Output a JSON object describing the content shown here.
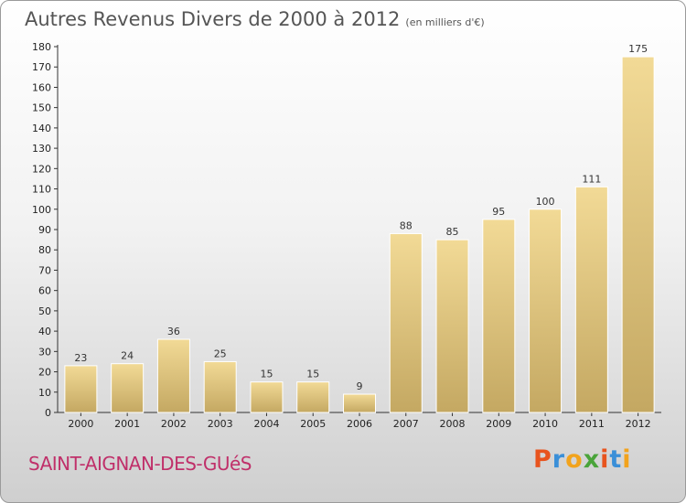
{
  "header": {
    "title": "Autres Revenus Divers de 2000 à 2012",
    "unit": "(en milliers d'€)"
  },
  "footer": {
    "commune": "SAINT-AIGNAN-DES-GUéS",
    "logo": "Proxiti",
    "logo_colors": [
      "#e8541e",
      "#3a8fd8",
      "#f2a31c",
      "#4aa43a",
      "#e8541e",
      "#3a8fd8",
      "#f2a31c"
    ]
  },
  "colors": {
    "bar_top": "#f2da96",
    "bar_bottom": "#c4a862",
    "bar_edge": "#ffffff",
    "commune": "#c0306a"
  },
  "chart_data": {
    "type": "bar",
    "title": "Autres Revenus Divers de 2000 à 2012",
    "subtitle": "(en milliers d'€)",
    "categories": [
      "2000",
      "2001",
      "2002",
      "2003",
      "2004",
      "2005",
      "2006",
      "2007",
      "2008",
      "2009",
      "2010",
      "2011",
      "2012"
    ],
    "values": [
      23,
      24,
      36,
      25,
      15,
      15,
      9,
      88,
      85,
      95,
      100,
      111,
      175
    ],
    "ylim": [
      0,
      180
    ],
    "ytick_step": 10,
    "grid": false,
    "legend": "none"
  }
}
